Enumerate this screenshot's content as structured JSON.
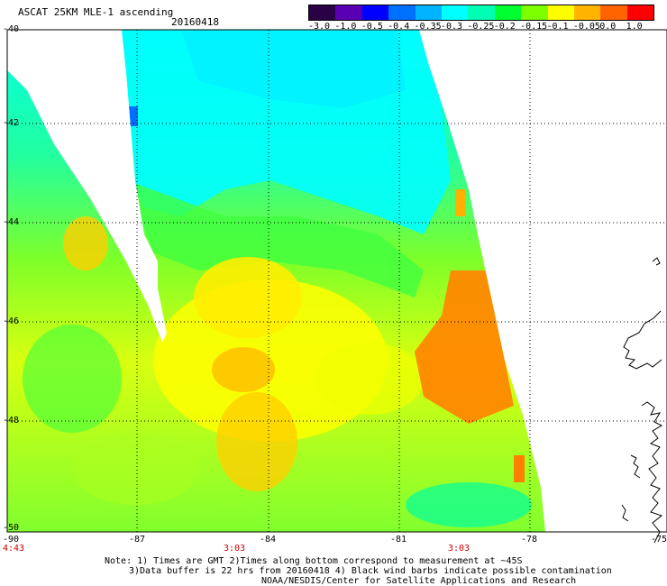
{
  "header": {
    "title": "ASCAT 25KM MLE-1 ascending",
    "date": "20160418"
  },
  "colorbar": {
    "labels": [
      "-3.0",
      "-1.0",
      "-0.5",
      "-0.4",
      "-0.35",
      "-0.3",
      "-0.25",
      "-0.2",
      "-0.15",
      "-0.1",
      "-0.05",
      "0.0",
      "1.0"
    ],
    "colors": [
      "#2a0046",
      "#5a00b4",
      "#0000ff",
      "#0070ff",
      "#00b4ff",
      "#00ffff",
      "#00ffb4",
      "#00ff30",
      "#7dff00",
      "#ffff00",
      "#ffb400",
      "#ff6400",
      "#ff0000"
    ]
  },
  "map": {
    "lat_labels": [
      "-40",
      "-42",
      "-44",
      "-46",
      "-48",
      "-50"
    ],
    "lon_labels": [
      "-90",
      "-87",
      "-84",
      "-81",
      "-78",
      "-75"
    ],
    "time_labels": [
      "4:43",
      "3:03",
      "3:03"
    ]
  },
  "notes": {
    "line1": "Note: 1) Times are GMT 2)Times along bottom correspond to measurement at ~45S",
    "line2": "3)Data buffer is 22 hrs from 20160418 4) Black wind barbs indicate possible contamination",
    "line3": "NOAA/NESDIS/Center for Satellite Applications and Research"
  }
}
